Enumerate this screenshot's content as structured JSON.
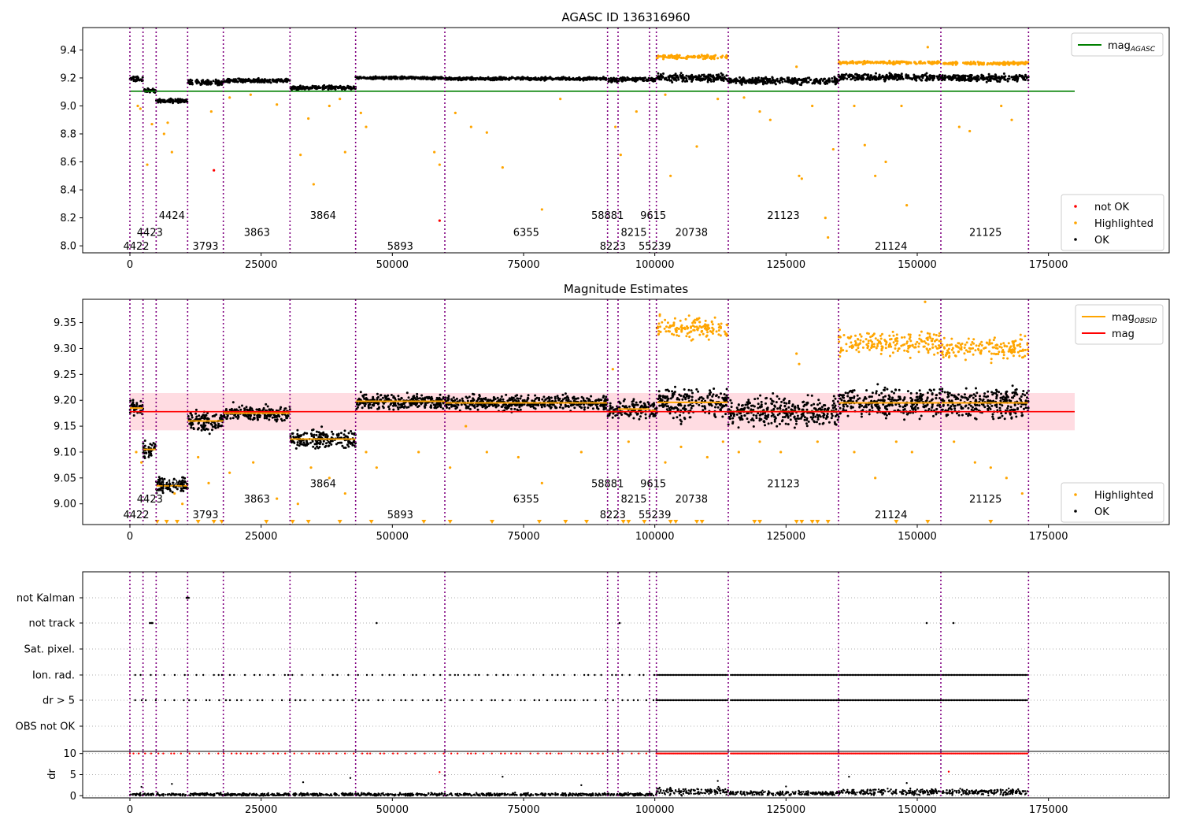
{
  "chart_data": [
    {
      "type": "scatter",
      "title": "AGASC ID 136316960",
      "x_ticks": [
        0,
        25000,
        50000,
        75000,
        100000,
        125000,
        150000,
        175000
      ],
      "y_ticks": [
        8.0,
        8.2,
        8.4,
        8.6,
        8.8,
        9.0,
        9.2,
        9.4
      ],
      "xlim": [
        -9000,
        198000
      ],
      "ylim": [
        7.95,
        9.56
      ],
      "agasc_mag": 9.105,
      "obs_boundaries": [
        0,
        2500,
        5000,
        11000,
        17800,
        30500,
        43000,
        60000,
        91000,
        93000,
        99000,
        100300,
        114000,
        135000,
        154500,
        171200
      ],
      "obsid_labels": [
        {
          "text": "4422",
          "x": 1200,
          "row": 0
        },
        {
          "text": "4423",
          "x": 3800,
          "row": 1
        },
        {
          "text": "4424",
          "x": 8000,
          "row": 2
        },
        {
          "text": "3793",
          "x": 14400,
          "row": 0
        },
        {
          "text": "3863",
          "x": 24200,
          "row": 1
        },
        {
          "text": "3864",
          "x": 36800,
          "row": 2
        },
        {
          "text": "5893",
          "x": 51500,
          "row": 0
        },
        {
          "text": "6355",
          "x": 75500,
          "row": 1
        },
        {
          "text": "8223",
          "x": 92000,
          "row": 0
        },
        {
          "text": "58881",
          "x": 91000,
          "row": 2
        },
        {
          "text": "8215",
          "x": 96000,
          "row": 1
        },
        {
          "text": "55239",
          "x": 100000,
          "row": 0
        },
        {
          "text": "9615",
          "x": 99700,
          "row": 2
        },
        {
          "text": "20738",
          "x": 107000,
          "row": 1
        },
        {
          "text": "21123",
          "x": 124500,
          "row": 2
        },
        {
          "text": "21124",
          "x": 145000,
          "row": 0
        },
        {
          "text": "21125",
          "x": 163000,
          "row": 1
        }
      ],
      "ok_segments": [
        {
          "x0": 0,
          "x1": 2500,
          "mag": 9.19,
          "spread": 0.025
        },
        {
          "x0": 2500,
          "x1": 5000,
          "mag": 9.11,
          "spread": 0.02
        },
        {
          "x0": 5000,
          "x1": 11000,
          "mag": 9.035,
          "spread": 0.02
        },
        {
          "x0": 11000,
          "x1": 17800,
          "mag": 9.165,
          "spread": 0.03
        },
        {
          "x0": 17800,
          "x1": 30500,
          "mag": 9.18,
          "spread": 0.02
        },
        {
          "x0": 30500,
          "x1": 43000,
          "mag": 9.13,
          "spread": 0.02
        },
        {
          "x0": 43000,
          "x1": 60000,
          "mag": 9.2,
          "spread": 0.015
        },
        {
          "x0": 60000,
          "x1": 91000,
          "mag": 9.195,
          "spread": 0.015
        },
        {
          "x0": 91000,
          "x1": 93000,
          "mag": 9.185,
          "spread": 0.03
        },
        {
          "x0": 93000,
          "x1": 99000,
          "mag": 9.19,
          "spread": 0.02
        },
        {
          "x0": 99000,
          "x1": 100300,
          "mag": 9.185,
          "spread": 0.02
        },
        {
          "x0": 100300,
          "x1": 114000,
          "mag": 9.2,
          "spread": 0.04
        },
        {
          "x0": 114000,
          "x1": 135000,
          "mag": 9.18,
          "spread": 0.035
        },
        {
          "x0": 135000,
          "x1": 154500,
          "mag": 9.205,
          "spread": 0.035
        },
        {
          "x0": 154500,
          "x1": 171200,
          "mag": 9.2,
          "spread": 0.035
        }
      ],
      "highlighted_bands": [
        {
          "x0": 100300,
          "x1": 114000,
          "mag": 9.35,
          "spread": 0.02
        },
        {
          "x0": 135000,
          "x1": 154500,
          "mag": 9.31,
          "spread": 0.015
        },
        {
          "x0": 154500,
          "x1": 171200,
          "mag": 9.305,
          "spread": 0.015
        }
      ],
      "highlighted_outliers": [
        {
          "x": 1500,
          "y": 9.0
        },
        {
          "x": 2000,
          "y": 8.98
        },
        {
          "x": 3300,
          "y": 8.58
        },
        {
          "x": 4200,
          "y": 8.87
        },
        {
          "x": 6500,
          "y": 8.8
        },
        {
          "x": 7200,
          "y": 8.88
        },
        {
          "x": 8000,
          "y": 8.67
        },
        {
          "x": 15500,
          "y": 8.96
        },
        {
          "x": 19000,
          "y": 9.06
        },
        {
          "x": 23000,
          "y": 9.08
        },
        {
          "x": 28000,
          "y": 9.01
        },
        {
          "x": 32500,
          "y": 8.65
        },
        {
          "x": 34000,
          "y": 8.91
        },
        {
          "x": 35000,
          "y": 8.44
        },
        {
          "x": 38000,
          "y": 9.0
        },
        {
          "x": 40000,
          "y": 9.05
        },
        {
          "x": 41000,
          "y": 8.67
        },
        {
          "x": 44000,
          "y": 8.95
        },
        {
          "x": 45000,
          "y": 8.85
        },
        {
          "x": 58000,
          "y": 8.67
        },
        {
          "x": 59000,
          "y": 8.58
        },
        {
          "x": 62000,
          "y": 8.95
        },
        {
          "x": 65000,
          "y": 8.85
        },
        {
          "x": 68000,
          "y": 8.81
        },
        {
          "x": 71000,
          "y": 8.56
        },
        {
          "x": 78500,
          "y": 8.26
        },
        {
          "x": 82000,
          "y": 9.05
        },
        {
          "x": 92500,
          "y": 8.85
        },
        {
          "x": 93500,
          "y": 8.65
        },
        {
          "x": 96500,
          "y": 8.96
        },
        {
          "x": 102000,
          "y": 9.08
        },
        {
          "x": 103000,
          "y": 8.5
        },
        {
          "x": 108000,
          "y": 8.71
        },
        {
          "x": 112000,
          "y": 9.05
        },
        {
          "x": 117000,
          "y": 9.06
        },
        {
          "x": 120000,
          "y": 8.96
        },
        {
          "x": 122000,
          "y": 8.9
        },
        {
          "x": 127000,
          "y": 9.28
        },
        {
          "x": 127500,
          "y": 8.5
        },
        {
          "x": 128000,
          "y": 8.48
        },
        {
          "x": 130000,
          "y": 9.0
        },
        {
          "x": 132500,
          "y": 8.2
        },
        {
          "x": 133000,
          "y": 8.06
        },
        {
          "x": 134000,
          "y": 8.69
        },
        {
          "x": 138000,
          "y": 9.0
        },
        {
          "x": 140000,
          "y": 8.72
        },
        {
          "x": 142000,
          "y": 8.5
        },
        {
          "x": 144000,
          "y": 8.6
        },
        {
          "x": 147000,
          "y": 9.0
        },
        {
          "x": 148000,
          "y": 8.29
        },
        {
          "x": 152000,
          "y": 9.42
        },
        {
          "x": 158000,
          "y": 8.85
        },
        {
          "x": 160000,
          "y": 8.82
        },
        {
          "x": 166000,
          "y": 9.0
        },
        {
          "x": 168000,
          "y": 8.9
        }
      ],
      "not_ok_points": [
        {
          "x": 16000,
          "y": 8.54
        },
        {
          "x": 59000,
          "y": 8.18
        }
      ],
      "legend_top": [
        {
          "label": "mag",
          "sub": "AGASC",
          "color": "#008000"
        }
      ],
      "legend_bottom": [
        {
          "label": "not OK",
          "color": "#ff0000"
        },
        {
          "label": "Highlighted",
          "color": "#ffa500"
        },
        {
          "label": "OK",
          "color": "#000000"
        }
      ]
    },
    {
      "type": "scatter",
      "title": "Magnitude Estimates",
      "x_ticks": [
        0,
        25000,
        50000,
        75000,
        100000,
        125000,
        150000,
        175000
      ],
      "y_ticks": [
        9.0,
        9.05,
        9.1,
        9.15,
        9.2,
        9.25,
        9.3,
        9.35
      ],
      "xlim": [
        -9000,
        198000
      ],
      "ylim": [
        8.96,
        9.395
      ],
      "mag": 9.178,
      "mag_band": [
        9.142,
        9.214
      ],
      "obsid_mag": [
        {
          "x0": 0,
          "x1": 2500,
          "mag": 9.185
        },
        {
          "x0": 2500,
          "x1": 5000,
          "mag": 9.105
        },
        {
          "x0": 5000,
          "x1": 11000,
          "mag": 9.035
        },
        {
          "x0": 11000,
          "x1": 17800,
          "mag": 9.16
        },
        {
          "x0": 17800,
          "x1": 30500,
          "mag": 9.175
        },
        {
          "x0": 30500,
          "x1": 43000,
          "mag": 9.125
        },
        {
          "x0": 43000,
          "x1": 60000,
          "mag": 9.198
        },
        {
          "x0": 60000,
          "x1": 91000,
          "mag": 9.195
        },
        {
          "x0": 91000,
          "x1": 93000,
          "mag": 9.178
        },
        {
          "x0": 93000,
          "x1": 99000,
          "mag": 9.183
        },
        {
          "x0": 99000,
          "x1": 100300,
          "mag": 9.18
        },
        {
          "x0": 100300,
          "x1": 114000,
          "mag": 9.196
        },
        {
          "x0": 114000,
          "x1": 135000,
          "mag": 9.178
        },
        {
          "x0": 135000,
          "x1": 154500,
          "mag": 9.195
        },
        {
          "x0": 154500,
          "x1": 171200,
          "mag": 9.195
        }
      ],
      "ok_segments": [
        {
          "x0": 0,
          "x1": 2500,
          "mag": 9.185,
          "spread": 0.022
        },
        {
          "x0": 2500,
          "x1": 5000,
          "mag": 9.105,
          "spread": 0.025
        },
        {
          "x0": 5000,
          "x1": 11000,
          "mag": 9.035,
          "spread": 0.02
        },
        {
          "x0": 11000,
          "x1": 17800,
          "mag": 9.16,
          "spread": 0.03
        },
        {
          "x0": 17800,
          "x1": 30500,
          "mag": 9.175,
          "spread": 0.022
        },
        {
          "x0": 30500,
          "x1": 43000,
          "mag": 9.125,
          "spread": 0.025
        },
        {
          "x0": 43000,
          "x1": 60000,
          "mag": 9.198,
          "spread": 0.02
        },
        {
          "x0": 60000,
          "x1": 91000,
          "mag": 9.195,
          "spread": 0.02
        },
        {
          "x0": 91000,
          "x1": 93000,
          "mag": 9.178,
          "spread": 0.02
        },
        {
          "x0": 93000,
          "x1": 99000,
          "mag": 9.183,
          "spread": 0.025
        },
        {
          "x0": 99000,
          "x1": 100300,
          "mag": 9.18,
          "spread": 0.02
        },
        {
          "x0": 100300,
          "x1": 114000,
          "mag": 9.196,
          "spread": 0.045
        },
        {
          "x0": 114000,
          "x1": 135000,
          "mag": 9.178,
          "spread": 0.04
        },
        {
          "x0": 135000,
          "x1": 154500,
          "mag": 9.195,
          "spread": 0.04
        },
        {
          "x0": 154500,
          "x1": 171200,
          "mag": 9.195,
          "spread": 0.04
        }
      ],
      "highlighted_bands": [
        {
          "x0": 100300,
          "x1": 114000,
          "mag": 9.34,
          "spread": 0.03
        },
        {
          "x0": 135000,
          "x1": 154500,
          "mag": 9.31,
          "spread": 0.03
        },
        {
          "x0": 154500,
          "x1": 171200,
          "mag": 9.3,
          "spread": 0.03
        }
      ],
      "highlighted_outliers": [
        {
          "x": 1200,
          "y": 9.1
        },
        {
          "x": 2200,
          "y": 9.08
        },
        {
          "x": 8500,
          "y": 9.02
        },
        {
          "x": 10000,
          "y": 9.0
        },
        {
          "x": 13000,
          "y": 9.09
        },
        {
          "x": 15000,
          "y": 9.04
        },
        {
          "x": 19000,
          "y": 9.06
        },
        {
          "x": 23500,
          "y": 9.08
        },
        {
          "x": 28000,
          "y": 9.01
        },
        {
          "x": 32000,
          "y": 9.0
        },
        {
          "x": 34500,
          "y": 9.07
        },
        {
          "x": 38000,
          "y": 9.05
        },
        {
          "x": 41000,
          "y": 9.02
        },
        {
          "x": 45000,
          "y": 9.1
        },
        {
          "x": 47000,
          "y": 9.07
        },
        {
          "x": 55000,
          "y": 9.1
        },
        {
          "x": 61000,
          "y": 9.07
        },
        {
          "x": 64000,
          "y": 9.15
        },
        {
          "x": 68000,
          "y": 9.1
        },
        {
          "x": 74000,
          "y": 9.09
        },
        {
          "x": 78500,
          "y": 9.04
        },
        {
          "x": 86000,
          "y": 9.1
        },
        {
          "x": 92000,
          "y": 9.26
        },
        {
          "x": 95000,
          "y": 9.12
        },
        {
          "x": 102000,
          "y": 9.08
        },
        {
          "x": 105000,
          "y": 9.11
        },
        {
          "x": 110000,
          "y": 9.09
        },
        {
          "x": 113000,
          "y": 9.12
        },
        {
          "x": 116000,
          "y": 9.1
        },
        {
          "x": 120000,
          "y": 9.12
        },
        {
          "x": 124000,
          "y": 9.1
        },
        {
          "x": 127000,
          "y": 9.29
        },
        {
          "x": 127500,
          "y": 9.27
        },
        {
          "x": 131000,
          "y": 9.12
        },
        {
          "x": 138000,
          "y": 9.1
        },
        {
          "x": 142000,
          "y": 9.05
        },
        {
          "x": 146000,
          "y": 9.12
        },
        {
          "x": 149000,
          "y": 9.1
        },
        {
          "x": 151500,
          "y": 9.39
        },
        {
          "x": 157000,
          "y": 9.12
        },
        {
          "x": 161000,
          "y": 9.08
        },
        {
          "x": 164000,
          "y": 9.07
        },
        {
          "x": 167000,
          "y": 9.05
        },
        {
          "x": 170000,
          "y": 9.02
        }
      ],
      "below_range_x": [
        5200,
        7000,
        9000,
        13000,
        16000,
        17500,
        26000,
        31000,
        34000,
        40000,
        46000,
        56000,
        61000,
        69000,
        78000,
        83000,
        87000,
        94000,
        95000,
        98000,
        103000,
        104000,
        108000,
        109000,
        119000,
        120000,
        127000,
        128000,
        130000,
        131000,
        133000,
        146000,
        152000,
        164000
      ],
      "legend_top": [
        {
          "label": "mag",
          "sub": "OBSID",
          "color": "#ffa500"
        },
        {
          "label": "mag",
          "sub": "",
          "color": "#ff0000"
        }
      ],
      "legend_bottom": [
        {
          "label": "Highlighted",
          "color": "#ffa500"
        },
        {
          "label": "OK",
          "color": "#000000"
        }
      ]
    },
    {
      "type": "scatter",
      "title": "",
      "x_ticks": [
        0,
        25000,
        50000,
        75000,
        100000,
        125000,
        150000,
        175000
      ],
      "xlim": [
        -9000,
        198000
      ],
      "flag_rows": [
        "not Kalman",
        "not track",
        "Sat. pixel.",
        "Ion. rad.",
        "dr > 5",
        "OBS not OK"
      ],
      "flag_points": {
        "not Kalman": [
          10800,
          11000,
          11200
        ],
        "not track": [
          3800,
          4100,
          4300,
          47000,
          93300,
          151800,
          156900
        ],
        "Sat. pixel.": [],
        "Ion. rad.": {
          "sparse_range": [
            1000,
            100000
          ],
          "dense_ranges": [
            [
              100300,
              114000
            ],
            [
              114500,
              171200
            ]
          ]
        },
        "dr > 5": {
          "sparse_range": [
            1000,
            100000
          ],
          "dense_ranges": [
            [
              100300,
              114000
            ],
            [
              114500,
              171200
            ]
          ]
        },
        "OBS not OK": []
      },
      "dr_ylabel": "dr",
      "dr_ticks": [
        0,
        5,
        10
      ],
      "dr_ylim": [
        -0.5,
        10.5
      ],
      "dr_segments": [
        {
          "x0": 0,
          "x1": 100300,
          "level": 0.3,
          "spread": 0.5
        },
        {
          "x0": 100300,
          "x1": 114000,
          "level": 1.0,
          "spread": 1.2
        },
        {
          "x0": 114000,
          "x1": 135000,
          "level": 0.6,
          "spread": 0.7
        },
        {
          "x0": 135000,
          "x1": 171200,
          "level": 0.9,
          "spread": 1.0
        }
      ],
      "dr_capped_ranges": {
        "sparse_range": [
          0,
          100000
        ],
        "dense_ranges": [
          [
            100300,
            114000
          ],
          [
            114500,
            171200
          ]
        ]
      },
      "dr_outliers": [
        {
          "x": 2200,
          "y": 2.1
        },
        {
          "x": 8000,
          "y": 2.8
        },
        {
          "x": 33000,
          "y": 3.2
        },
        {
          "x": 42000,
          "y": 4.2
        },
        {
          "x": 59000,
          "y": 5.6
        },
        {
          "x": 60000,
          "y": 4.8
        },
        {
          "x": 71000,
          "y": 4.5
        },
        {
          "x": 86000,
          "y": 2.5
        },
        {
          "x": 112000,
          "y": 3.5
        },
        {
          "x": 125000,
          "y": 2.2
        },
        {
          "x": 137000,
          "y": 4.5
        },
        {
          "x": 148000,
          "y": 3.0
        },
        {
          "x": 156000,
          "y": 5.7
        }
      ]
    }
  ],
  "colors": {
    "ok": "#000000",
    "highlighted": "#ffa500",
    "not_ok": "#ff0000",
    "agasc_line": "#008000",
    "mag_line": "#ff0000",
    "obsid_line": "#ffa500",
    "obs_boundary": "#800080",
    "mag_band": "#ffc0cb"
  }
}
